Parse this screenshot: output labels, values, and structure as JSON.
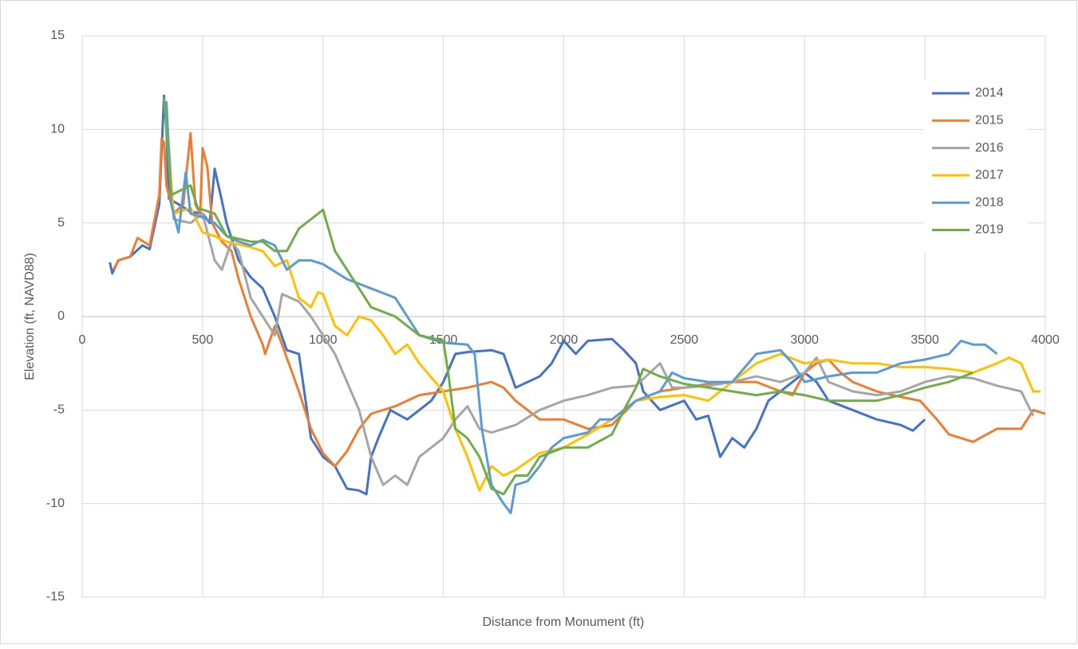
{
  "chart_data": {
    "type": "line",
    "xlabel": "Distance from Monument (ft)",
    "ylabel": "Elevation (ft, NAVD88)",
    "xlim": [
      0,
      4000
    ],
    "xticks": [
      0,
      500,
      1000,
      1500,
      2000,
      2500,
      3000,
      3500,
      4000
    ],
    "ylim": [
      -15,
      15
    ],
    "yticks": [
      -15,
      -10,
      -5,
      0,
      5,
      10,
      15
    ],
    "grid": true,
    "legend": "right",
    "series": [
      {
        "name": "2014",
        "color": "#4472c4",
        "x": [
          115,
          125,
          150,
          200,
          250,
          280,
          320,
          340,
          350,
          360,
          400,
          450,
          500,
          530,
          550,
          580,
          600,
          650,
          700,
          750,
          800,
          850,
          900,
          950,
          1000,
          1050,
          1100,
          1150,
          1180,
          1200,
          1230,
          1280,
          1350,
          1400,
          1450,
          1500,
          1550,
          1600,
          1700,
          1750,
          1800,
          1900,
          1950,
          2000,
          2050,
          2100,
          2200,
          2250,
          2300,
          2330,
          2400,
          2500,
          2550,
          2600,
          2650,
          2700,
          2750,
          2800,
          2850,
          2900,
          2950,
          3000,
          3050,
          3100,
          3200,
          3300,
          3400,
          3450,
          3500
        ],
        "values": [
          2.9,
          2.3,
          3.0,
          3.2,
          3.8,
          3.6,
          6,
          11.8,
          10,
          6.3,
          6,
          5.6,
          5.5,
          5,
          7.9,
          6.2,
          5,
          3,
          2.1,
          1.5,
          0,
          -1.8,
          -2,
          -6.5,
          -7.5,
          -8,
          -9.2,
          -9.3,
          -9.5,
          -7.5,
          -6.5,
          -5,
          -5.5,
          -5,
          -4.5,
          -3.5,
          -2,
          -1.9,
          -1.8,
          -2,
          -3.8,
          -3.2,
          -2.5,
          -1.3,
          -2,
          -1.3,
          -1.2,
          -1.8,
          -2.5,
          -4,
          -5,
          -4.5,
          -5.5,
          -5.3,
          -7.5,
          -6.5,
          -7,
          -6,
          -4.5,
          -4,
          -3.5,
          -3,
          -3.5,
          -4.5,
          -5,
          -5.5,
          -5.8,
          -6.1,
          -5.5
        ]
      },
      {
        "name": "2015",
        "color": "#ed7d31",
        "x": [
          130,
          150,
          200,
          230,
          280,
          320,
          330,
          340,
          350,
          380,
          420,
          450,
          470,
          490,
          500,
          520,
          540,
          580,
          620,
          650,
          700,
          750,
          760,
          800,
          830,
          900,
          950,
          1000,
          1050,
          1100,
          1150,
          1200,
          1300,
          1400,
          1500,
          1600,
          1700,
          1750,
          1800,
          1900,
          2000,
          2100,
          2200,
          2300,
          2400,
          2500,
          2600,
          2700,
          2800,
          2900,
          2950,
          3000,
          3050,
          3100,
          3150,
          3200,
          3300,
          3400,
          3480,
          3550,
          3600,
          3700,
          3800,
          3900,
          3950,
          4000
        ],
        "values": [
          2.5,
          3,
          3.2,
          4.2,
          3.8,
          6.5,
          9.5,
          9.3,
          7,
          5.5,
          6,
          9.8,
          6,
          5.5,
          9,
          8,
          5,
          4,
          3.5,
          2,
          0,
          -1.5,
          -2,
          -0.5,
          -1.5,
          -4,
          -6,
          -7.3,
          -8,
          -7.2,
          -6,
          -5.2,
          -4.8,
          -4.2,
          -4,
          -3.8,
          -3.5,
          -3.8,
          -4.5,
          -5.5,
          -5.5,
          -6,
          -5.8,
          -4.5,
          -4,
          -3.8,
          -3.6,
          -3.5,
          -3.5,
          -4,
          -4.2,
          -3,
          -2.5,
          -2.3,
          -3,
          -3.5,
          -4,
          -4.3,
          -4.5,
          -5.5,
          -6.3,
          -6.7,
          -6,
          -6,
          -5,
          -5.2
        ]
      },
      {
        "name": "2016",
        "color": "#a5a5a5",
        "x": [
          350,
          380,
          450,
          500,
          550,
          580,
          620,
          650,
          700,
          750,
          800,
          830,
          900,
          950,
          1000,
          1050,
          1100,
          1150,
          1200,
          1250,
          1300,
          1350,
          1400,
          1450,
          1500,
          1550,
          1600,
          1650,
          1700,
          1800,
          1900,
          2000,
          2100,
          2200,
          2300,
          2400,
          2450,
          2500,
          2600,
          2700,
          2800,
          2900,
          3000,
          3050,
          3100,
          3200,
          3300,
          3400,
          3500,
          3600,
          3700,
          3800,
          3900,
          3950
        ],
        "values": [
          11,
          5.2,
          5.0,
          5.5,
          3,
          2.5,
          4,
          3.5,
          1,
          0,
          -1,
          1.2,
          0.8,
          0,
          -1,
          -2,
          -3.5,
          -5,
          -7.5,
          -9,
          -8.5,
          -9,
          -7.5,
          -7,
          -6.5,
          -5.5,
          -4.8,
          -6,
          -6.2,
          -5.8,
          -5,
          -4.5,
          -4.2,
          -3.8,
          -3.7,
          -2.5,
          -3.8,
          -3.8,
          -3.7,
          -3.5,
          -3.2,
          -3.5,
          -3,
          -2.2,
          -3.5,
          -4,
          -4.2,
          -4,
          -3.5,
          -3.2,
          -3.3,
          -3.7,
          -4,
          -5.3
        ]
      },
      {
        "name": "2017",
        "color": "#ffc000",
        "x": [
          350,
          380,
          450,
          500,
          550,
          600,
          700,
          750,
          800,
          850,
          900,
          950,
          980,
          1000,
          1050,
          1100,
          1150,
          1200,
          1250,
          1300,
          1350,
          1400,
          1500,
          1550,
          1600,
          1650,
          1700,
          1750,
          1800,
          1900,
          2000,
          2100,
          2200,
          2300,
          2400,
          2500,
          2600,
          2700,
          2800,
          2900,
          3000,
          3100,
          3200,
          3300,
          3400,
          3500,
          3600,
          3700,
          3800,
          3850,
          3900,
          3950,
          3980
        ],
        "values": [
          10,
          5.5,
          5.8,
          4.5,
          4.3,
          4,
          3.7,
          3.5,
          2.7,
          3,
          1,
          0.5,
          1.3,
          1.2,
          -0.5,
          -1,
          0,
          -0.2,
          -1,
          -2,
          -1.5,
          -2.5,
          -4,
          -6,
          -7.5,
          -9.3,
          -8,
          -8.5,
          -8.2,
          -7.3,
          -7,
          -6.3,
          -5.5,
          -4.5,
          -4.3,
          -4.2,
          -4.5,
          -3.5,
          -2.5,
          -2,
          -2.5,
          -2.3,
          -2.5,
          -2.5,
          -2.7,
          -2.7,
          -2.8,
          -3,
          -2.5,
          -2.2,
          -2.5,
          -4,
          -4
        ]
      },
      {
        "name": "2018",
        "color": "#5b9bd5",
        "x": [
          350,
          370,
          400,
          430,
          450,
          500,
          550,
          600,
          650,
          700,
          750,
          800,
          850,
          900,
          950,
          1000,
          1100,
          1200,
          1300,
          1400,
          1500,
          1600,
          1630,
          1660,
          1700,
          1750,
          1780,
          1800,
          1850,
          1900,
          1950,
          2000,
          2100,
          2150,
          2200,
          2300,
          2400,
          2450,
          2500,
          2600,
          2700,
          2800,
          2900,
          2950,
          3000,
          3100,
          3200,
          3300,
          3400,
          3500,
          3600,
          3650,
          3700,
          3750,
          3800
        ],
        "values": [
          11.5,
          6,
          4.5,
          7.7,
          5.5,
          5.3,
          5,
          4.3,
          4,
          3.8,
          4.1,
          3.8,
          2.5,
          3,
          3,
          2.8,
          2,
          1.5,
          1,
          -1,
          -1.4,
          -1.5,
          -2,
          -6,
          -9,
          -10,
          -10.5,
          -9,
          -8.8,
          -8,
          -7,
          -6.5,
          -6.2,
          -5.5,
          -5.5,
          -4.5,
          -4,
          -3,
          -3.3,
          -3.5,
          -3.5,
          -2,
          -1.8,
          -2.5,
          -3.5,
          -3.2,
          -3,
          -3,
          -2.5,
          -2.3,
          -2,
          -1.3,
          -1.5,
          -1.5,
          -2
        ]
      },
      {
        "name": "2019",
        "color": "#70ad47",
        "x": [
          340,
          370,
          450,
          480,
          550,
          600,
          700,
          750,
          800,
          850,
          900,
          950,
          1000,
          1050,
          1100,
          1150,
          1200,
          1300,
          1400,
          1500,
          1520,
          1550,
          1600,
          1650,
          1700,
          1750,
          1800,
          1850,
          1900,
          2000,
          2100,
          2200,
          2250,
          2300,
          2330,
          2400,
          2500,
          2600,
          2700,
          2800,
          2900,
          3000,
          3100,
          3200,
          3300,
          3400,
          3500,
          3600,
          3700
        ],
        "values": [
          11.7,
          6.5,
          7,
          5.8,
          5.5,
          4.3,
          4,
          4,
          3.5,
          3.5,
          4.7,
          5.2,
          5.7,
          3.5,
          2.5,
          1.5,
          0.5,
          0,
          -1,
          -1.3,
          -3,
          -6,
          -6.5,
          -7.5,
          -9.2,
          -9.5,
          -8.5,
          -8.5,
          -7.5,
          -7,
          -7,
          -6.3,
          -5,
          -3.8,
          -2.8,
          -3.2,
          -3.6,
          -3.8,
          -4,
          -4.2,
          -4,
          -4.2,
          -4.5,
          -4.5,
          -4.5,
          -4.2,
          -3.8,
          -3.5,
          -3
        ]
      }
    ]
  }
}
